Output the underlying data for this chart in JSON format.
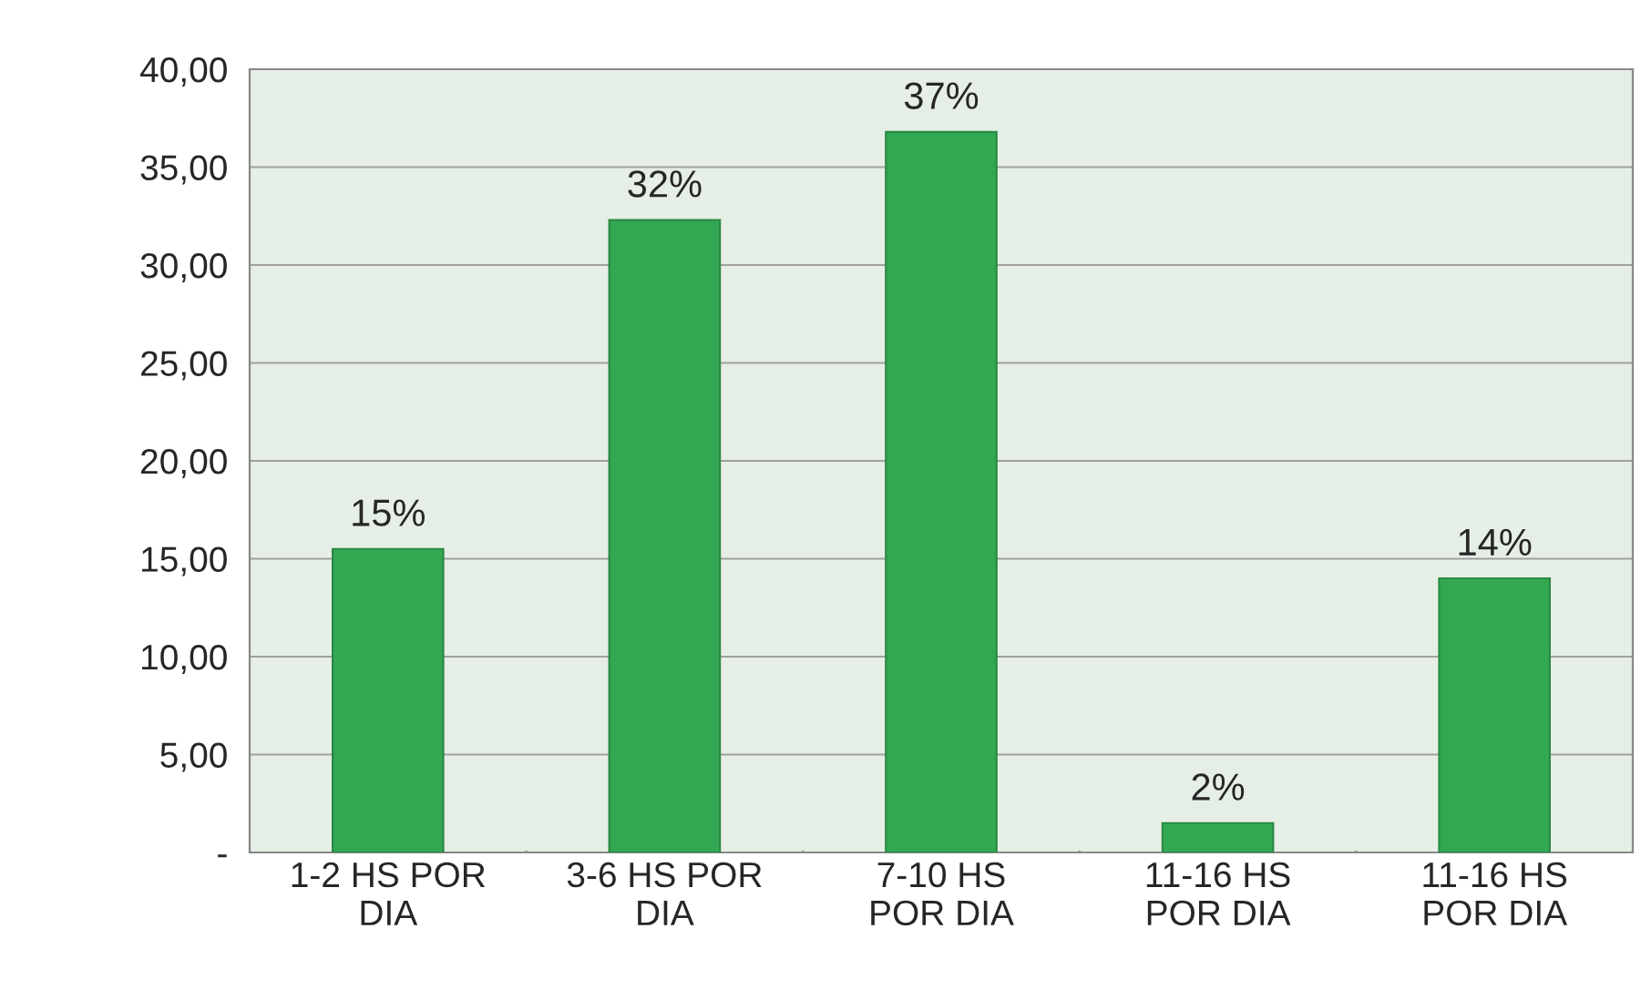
{
  "chart_data": {
    "type": "bar",
    "categories": [
      "1-2 HS POR\nDIA",
      "3-6 HS POR\nDIA",
      "7-10 HS\nPOR DIA",
      "11-16 HS\nPOR DIA",
      "11-16 HS\nPOR DIA"
    ],
    "values": [
      15.5,
      32.3,
      36.8,
      1.5,
      14.0
    ],
    "value_labels": [
      "15%",
      "32%",
      "37%",
      "2%",
      "14%"
    ],
    "color": "#33a853",
    "ylim": [
      0,
      40
    ],
    "yticks": [
      {
        "value": 0,
        "label": "-"
      },
      {
        "value": 5,
        "label": "5,00"
      },
      {
        "value": 10,
        "label": "10,00"
      },
      {
        "value": 15,
        "label": "15,00"
      },
      {
        "value": 20,
        "label": "20,00"
      },
      {
        "value": 25,
        "label": "25,00"
      },
      {
        "value": 30,
        "label": "30,00"
      },
      {
        "value": 35,
        "label": "35,00"
      },
      {
        "value": 40,
        "label": "40,00"
      }
    ],
    "grid": "y"
  }
}
